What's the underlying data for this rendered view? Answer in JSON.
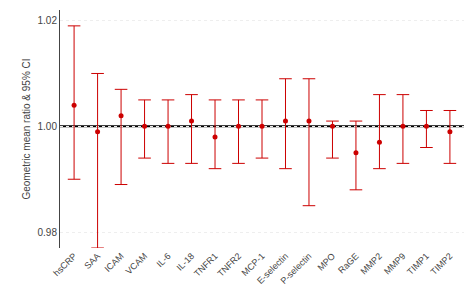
{
  "chart_data": {
    "type": "scatter",
    "categories": [
      "hsCRP",
      "SAA",
      "ICAM",
      "VCAM",
      "IL-6",
      "IL-18",
      "TNFR1",
      "TNFR2",
      "MCP-1",
      "E-selectin",
      "P-selectin",
      "MPO",
      "RaGE",
      "MMP2",
      "MMP9",
      "TIMP1",
      "TIMP2"
    ],
    "values": [
      1.004,
      0.999,
      1.002,
      1.0,
      1.0,
      1.001,
      0.998,
      1.0,
      1.0,
      1.001,
      1.001,
      1.0,
      0.995,
      0.997,
      1.0,
      1.0,
      0.999
    ],
    "ci_upper": [
      1.019,
      1.01,
      1.007,
      1.005,
      1.005,
      1.006,
      1.005,
      1.005,
      1.005,
      1.009,
      1.009,
      1.001,
      1.001,
      1.006,
      1.006,
      1.003,
      1.003
    ],
    "ci_lower": [
      0.99,
      0.977,
      0.989,
      0.994,
      0.993,
      0.993,
      0.992,
      0.993,
      0.994,
      0.992,
      0.985,
      0.994,
      0.988,
      0.992,
      0.993,
      0.996,
      0.993
    ],
    "color": "#cc0000",
    "ref_line": {
      "value": 1.0,
      "color": "#000000"
    },
    "ylabel": "Geometric mean ratio & 95% CI",
    "ylim": [
      0.977,
      1.022
    ],
    "yticks": [
      0.98,
      {
        "value": 1.0,
        "label": "1.00"
      },
      1.02
    ],
    "grid": true
  }
}
